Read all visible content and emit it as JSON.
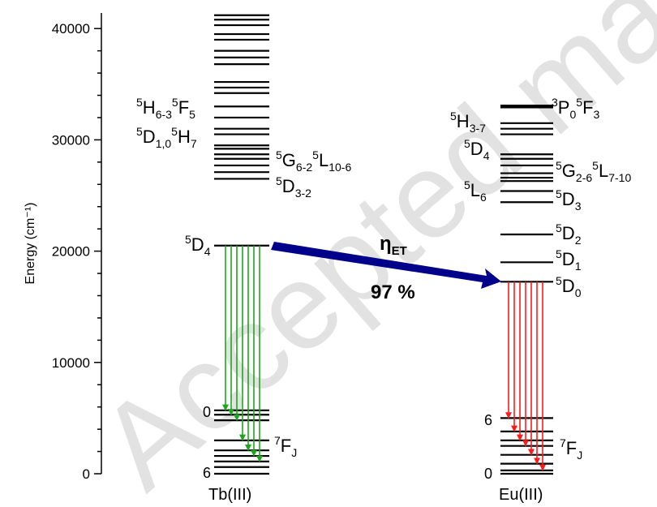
{
  "chart_data": {
    "type": "energy-level-diagram",
    "ylabel": "Energy (cm⁻¹)",
    "ylim": [
      0,
      41500
    ],
    "yticks": [
      0,
      10000,
      20000,
      30000,
      40000
    ],
    "ytick_labels": [
      "0",
      "10000",
      "20000",
      "30000",
      "40000"
    ],
    "ions": [
      {
        "name": "Tb(III)",
        "levels_cm1": [
          0,
          600,
          1100,
          1600,
          2100,
          3000,
          4800,
          5300,
          5700,
          20500,
          26500,
          27100,
          27700,
          28300,
          28700,
          29200,
          29500,
          30500,
          31000,
          32000,
          33000,
          34200,
          34700,
          35200,
          36800,
          37400,
          38000,
          39000,
          39500,
          40300,
          40800,
          41200
        ],
        "excited_label_level": 20500,
        "excited_label": [
          "5",
          "D",
          "4"
        ],
        "ground_multiplet": {
          "top": "0",
          "bottom": "6",
          "term": [
            "7",
            "F",
            "J"
          ]
        },
        "high_labels": [
          [
            "5",
            "H",
            "6-3",
            "5",
            "F",
            "5"
          ],
          [
            "5",
            "D",
            "1,0",
            "5",
            "H",
            "7"
          ],
          [
            "5",
            "G",
            "6-2",
            "5",
            "L",
            "10-6"
          ],
          [
            "5",
            "D",
            "3-2"
          ]
        ]
      },
      {
        "name": "Eu(III)",
        "levels_cm1": [
          0,
          300,
          900,
          1700,
          2500,
          3000,
          3800,
          5000,
          17250,
          19000,
          21500,
          24400,
          25400,
          26300,
          26600,
          27000,
          27700,
          28300,
          28700,
          30500,
          31000,
          31500,
          33000
        ],
        "thick_level": 33000,
        "ground_multiplet": {
          "top": "6",
          "bottom": "0",
          "term": [
            "7",
            "F",
            "J"
          ]
        },
        "right_labels": [
          [
            "3",
            "P",
            "0",
            "5",
            "F",
            "3"
          ],
          [
            "5",
            "G",
            "2-6",
            "5",
            "L",
            "7-10"
          ],
          [
            "5",
            "D",
            "3"
          ],
          [
            "5",
            "D",
            "2"
          ],
          [
            "5",
            "D",
            "1"
          ],
          [
            "5",
            "D",
            "0"
          ]
        ],
        "left_labels": [
          [
            "5",
            "H",
            "3-7"
          ],
          [
            "5",
            "D",
            "4"
          ],
          [
            "5",
            "L",
            "6"
          ]
        ]
      }
    ],
    "energy_transfer": {
      "label": [
        "η",
        "ET"
      ],
      "efficiency": "97 %",
      "from": "Tb(III)",
      "to": "Eu(III)"
    },
    "emission": [
      {
        "ion": "Tb(III)",
        "from_cm1": 20500,
        "to_cm1": [
          5700,
          5300,
          4800,
          3000,
          2100,
          1600,
          1100
        ],
        "color": "#1aa81a"
      },
      {
        "ion": "Eu(III)",
        "from_cm1": 17250,
        "to_cm1": [
          5000,
          3800,
          3000,
          2500,
          1700,
          900,
          300
        ],
        "color": "#ff1a1a"
      }
    ],
    "colors": {
      "arrow": "#00008b",
      "transfer_text": "#1a3fd6"
    },
    "watermark": "Accepted manuscript"
  }
}
